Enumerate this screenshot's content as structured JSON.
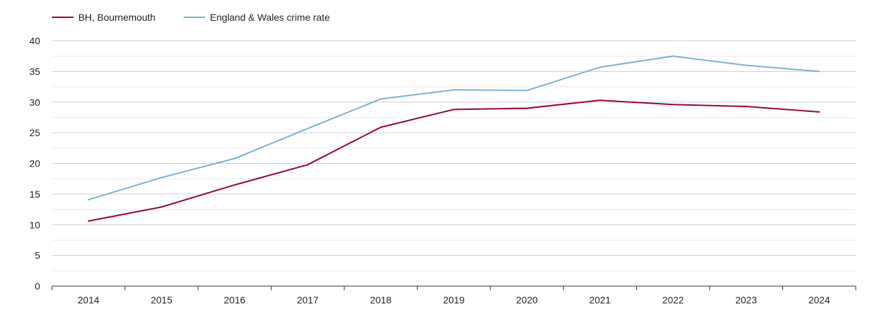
{
  "chart_data": {
    "type": "line",
    "title": "",
    "xlabel": "",
    "ylabel": "",
    "x": [
      "2014",
      "2015",
      "2016",
      "2017",
      "2018",
      "2019",
      "2020",
      "2021",
      "2022",
      "2023",
      "2024"
    ],
    "ylim": [
      0,
      40
    ],
    "y_ticks": [
      "0",
      "5",
      "10",
      "15",
      "20",
      "25",
      "30",
      "35",
      "40"
    ],
    "grid": "horizontal major and minor",
    "legend_position": "top-left",
    "series": [
      {
        "name": "BH, Bournemouth",
        "color": "#990033",
        "values": [
          10.6,
          12.9,
          16.5,
          19.8,
          25.9,
          28.8,
          29.0,
          30.3,
          29.6,
          29.3,
          28.4
        ]
      },
      {
        "name": "England & Wales crime rate",
        "color": "#7ab0d0",
        "values": [
          14.1,
          17.7,
          20.8,
          25.7,
          30.5,
          32.0,
          31.9,
          35.7,
          37.5,
          36.0,
          35.0
        ]
      }
    ]
  }
}
